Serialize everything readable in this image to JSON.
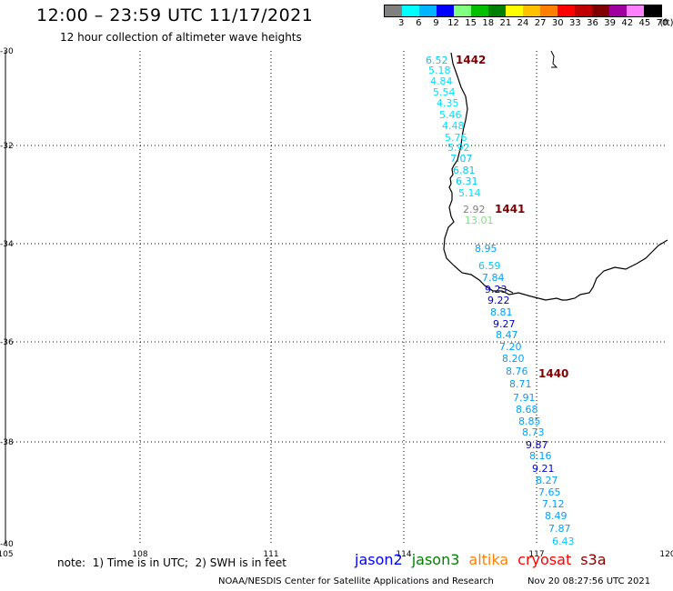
{
  "header": {
    "title": "12:00 – 23:59 UTC 11/17/2021",
    "subtitle": "12 hour collection of altimeter wave heights"
  },
  "colorbar": {
    "colors": [
      "#808080",
      "#00ffff",
      "#00b4ff",
      "#0000ff",
      "#80ff80",
      "#00c000",
      "#008000",
      "#ffff00",
      "#ffc000",
      "#ff8000",
      "#ff0000",
      "#c00000",
      "#800000",
      "#a000a0",
      "#ff80ff",
      "#000000"
    ],
    "labels": [
      "3",
      "6",
      "9",
      "12",
      "15",
      "18",
      "21",
      "24",
      "27",
      "30",
      "33",
      "36",
      "39",
      "42",
      "45",
      "70"
    ],
    "unit": "(ft)"
  },
  "axes": {
    "lat_labels": [
      "-30",
      "-32",
      "-34",
      "-36",
      "-38",
      "-40"
    ],
    "lon_labels": [
      "105",
      "108",
      "111",
      "114",
      "117",
      "120"
    ]
  },
  "passes": [
    {
      "id": "1442",
      "color": "#800000"
    },
    {
      "id": "1441",
      "color": "#800000"
    },
    {
      "id": "1440",
      "color": "#800000"
    }
  ],
  "observations": [
    {
      "v": "6.52",
      "c": "#00c8ff"
    },
    {
      "v": "5.18",
      "c": "#00e0ff"
    },
    {
      "v": "4.84",
      "c": "#00e0ff"
    },
    {
      "v": "5.54",
      "c": "#00e0ff"
    },
    {
      "v": "4.35",
      "c": "#00e0ff"
    },
    {
      "v": "5.46",
      "c": "#00e0ff"
    },
    {
      "v": "4.48",
      "c": "#00e0ff"
    },
    {
      "v": "5.76",
      "c": "#00e0ff"
    },
    {
      "v": "5.92",
      "c": "#00e0ff"
    },
    {
      "v": "7.07",
      "c": "#00c8ff"
    },
    {
      "v": "6.81",
      "c": "#00c8ff"
    },
    {
      "v": "6.31",
      "c": "#00c8ff"
    },
    {
      "v": "5.14",
      "c": "#00e0ff"
    },
    {
      "v": "2.92",
      "c": "#808080"
    },
    {
      "v": "13.01",
      "c": "#80e080"
    },
    {
      "v": "8.95",
      "c": "#00a0ff"
    },
    {
      "v": "6.59",
      "c": "#00c8ff"
    },
    {
      "v": "7.84",
      "c": "#00a0ff"
    },
    {
      "v": "9.23",
      "c": "#0000c0"
    },
    {
      "v": "9.22",
      "c": "#0000c0"
    },
    {
      "v": "8.81",
      "c": "#00a0ff"
    },
    {
      "v": "9.27",
      "c": "#0000c0"
    },
    {
      "v": "8.47",
      "c": "#00a0ff"
    },
    {
      "v": "7.20",
      "c": "#00a0ff"
    },
    {
      "v": "8.20",
      "c": "#00a0ff"
    },
    {
      "v": "8.76",
      "c": "#00a0ff"
    },
    {
      "v": "8.71",
      "c": "#00a0ff"
    },
    {
      "v": "7.91",
      "c": "#00a0ff"
    },
    {
      "v": "8.68",
      "c": "#00a0ff"
    },
    {
      "v": "8.85",
      "c": "#00a0ff"
    },
    {
      "v": "8.73",
      "c": "#00a0ff"
    },
    {
      "v": "9.87",
      "c": "#0000c0"
    },
    {
      "v": "8.16",
      "c": "#00a0ff"
    },
    {
      "v": "9.21",
      "c": "#0000c0"
    },
    {
      "v": "8.27",
      "c": "#00a0ff"
    },
    {
      "v": "7.65",
      "c": "#00a0ff"
    },
    {
      "v": "7.12",
      "c": "#00a0ff"
    },
    {
      "v": "8.49",
      "c": "#00a0ff"
    },
    {
      "v": "7.87",
      "c": "#00a0ff"
    },
    {
      "v": "6.43",
      "c": "#00c8ff"
    }
  ],
  "footer": {
    "note": "note:  1) Time is in UTC;  2) SWH is in feet",
    "legend": [
      {
        "label": "jason2",
        "color": "#0000ff"
      },
      {
        "label": "jason3",
        "color": "#008000"
      },
      {
        "label": "altika",
        "color": "#ff8000"
      },
      {
        "label": "cryosat",
        "color": "#ff0000"
      },
      {
        "label": "s3a",
        "color": "#800000"
      }
    ],
    "credit": "NOAA/NESDIS Center for Satellite Applications and Research",
    "timestamp": "Nov 20 08:27:56 UTC 2021"
  }
}
